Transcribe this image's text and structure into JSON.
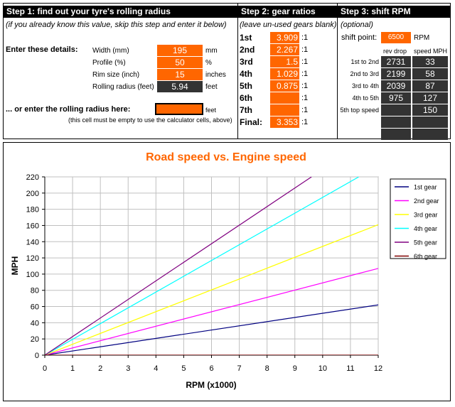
{
  "step1": {
    "header": "Step 1: find out your tyre's rolling radius",
    "note": "(if you already know this value, skip this step and enter it below)",
    "enter_label": "Enter these details:",
    "fields": [
      {
        "label": "Width (mm)",
        "value": "195",
        "unit": "mm"
      },
      {
        "label": "Profile (%)",
        "value": "50",
        "unit": "%"
      },
      {
        "label": "Rim size (inch)",
        "value": "15",
        "unit": "inches"
      },
      {
        "label": "Rolling radius (feet)",
        "value": "5.94",
        "unit": "feet"
      }
    ],
    "or_label": "... or enter the rolling radius here:",
    "or_value": "",
    "or_unit": "feet",
    "empty_note": "(this cell must be empty to use the calculator cells, above)"
  },
  "step2": {
    "header": "Step 2: gear ratios",
    "note": "(leave un-used gears blank)",
    "gears": [
      {
        "label": "1st",
        "value": "3.909",
        "suffix": ":1"
      },
      {
        "label": "2nd",
        "value": "2.267",
        "suffix": ":1"
      },
      {
        "label": "3rd",
        "value": "1.5",
        "suffix": ":1"
      },
      {
        "label": "4th",
        "value": "1.029",
        "suffix": ":1"
      },
      {
        "label": "5th",
        "value": "0.875",
        "suffix": ":1"
      },
      {
        "label": "6th",
        "value": "",
        "suffix": ":1"
      },
      {
        "label": "7th",
        "value": "",
        "suffix": ":1"
      },
      {
        "label": "Final:",
        "value": "3.353",
        "suffix": ":1"
      }
    ]
  },
  "step3": {
    "header": "Step 3: shift RPM",
    "note": "(optional)",
    "shift_label": "shift point:",
    "shift_value": "6500",
    "shift_unit": "RPM",
    "col_rev": "rev drop",
    "col_speed": "speed MPH",
    "rows": [
      {
        "label": "1st to 2nd",
        "rev": "2731",
        "speed": "33"
      },
      {
        "label": "2nd to 3rd",
        "rev": "2199",
        "speed": "58"
      },
      {
        "label": "3rd to 4th",
        "rev": "2039",
        "speed": "87"
      },
      {
        "label": "4th to 5th",
        "rev": "975",
        "speed": "127"
      },
      {
        "label": "5th top speed",
        "rev": "",
        "speed": "150"
      },
      {
        "label": "",
        "rev": "",
        "speed": ""
      },
      {
        "label": "",
        "rev": "",
        "speed": ""
      }
    ]
  },
  "colors": {
    "accent": "#ff6600",
    "dark_cell": "#333333",
    "title": "#ff6600"
  },
  "chart_data": {
    "type": "line",
    "title": "Road speed vs. Engine speed",
    "xlabel": "RPM (x1000)",
    "ylabel": "MPH",
    "xlim": [
      0,
      12
    ],
    "ylim": [
      0,
      220
    ],
    "xticks": [
      0,
      1,
      2,
      3,
      4,
      5,
      6,
      7,
      8,
      9,
      10,
      11,
      12
    ],
    "yticks": [
      0,
      20,
      40,
      60,
      80,
      100,
      120,
      140,
      160,
      180,
      200,
      220
    ],
    "grid": true,
    "legend_position": "right",
    "series": [
      {
        "name": "1st gear",
        "color": "#000080",
        "points": [
          [
            0,
            0
          ],
          [
            12,
            62
          ]
        ]
      },
      {
        "name": "2nd gear",
        "color": "#ff00ff",
        "points": [
          [
            0,
            0
          ],
          [
            12,
            107
          ]
        ]
      },
      {
        "name": "3rd gear",
        "color": "#ffff00",
        "points": [
          [
            0,
            0
          ],
          [
            12,
            161
          ]
        ]
      },
      {
        "name": "4th gear",
        "color": "#00ffff",
        "points": [
          [
            0,
            0
          ],
          [
            11.3,
            220
          ]
        ]
      },
      {
        "name": "5th gear",
        "color": "#800080",
        "points": [
          [
            0,
            0
          ],
          [
            9.6,
            220
          ]
        ]
      },
      {
        "name": "6th gear",
        "color": "#800000",
        "points": [
          [
            0,
            0
          ],
          [
            12,
            0
          ]
        ]
      }
    ]
  }
}
